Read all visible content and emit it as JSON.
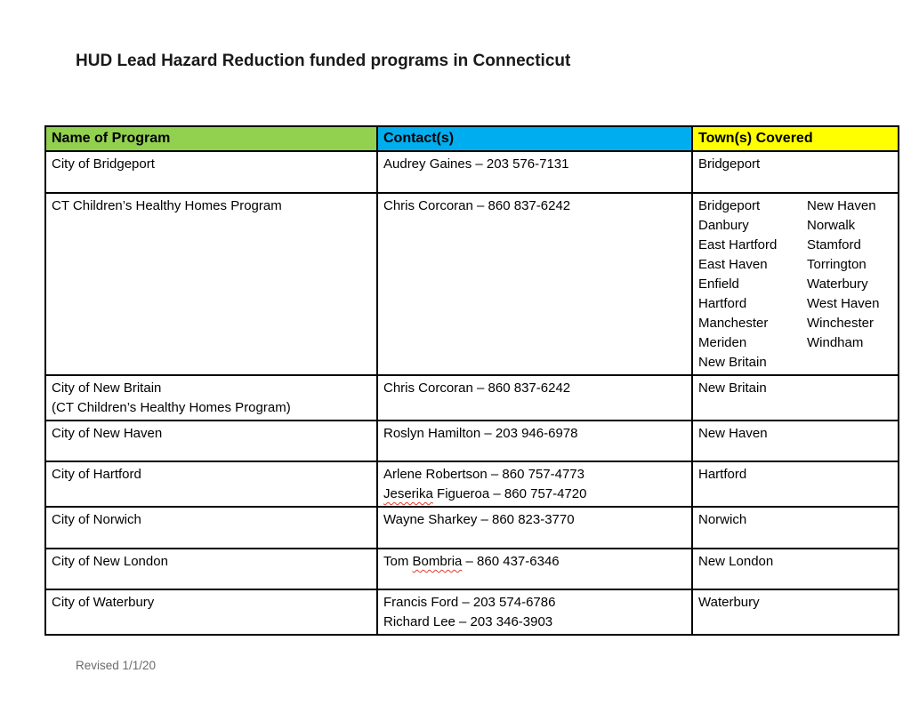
{
  "page": {
    "title": "HUD Lead Hazard Reduction funded programs in Connecticut",
    "footer": "Revised 1/1/20"
  },
  "table": {
    "headers": [
      {
        "label": "Name of Program",
        "color": "#92D050"
      },
      {
        "label": "Contact(s)",
        "color": "#00AEEF"
      },
      {
        "label": "Town(s) Covered",
        "color": "#FFFF00"
      }
    ],
    "spellcheck_color": "#e03c31",
    "rows": [
      {
        "program": [
          "City of Bridgeport"
        ],
        "contacts": [
          {
            "line": "Audrey Gaines – 203 576-7131"
          }
        ],
        "towns": [
          [
            "Bridgeport",
            ""
          ]
        ]
      },
      {
        "program": [
          "CT Children’s Healthy Homes Program"
        ],
        "contacts": [
          {
            "line": "Chris Corcoran – 860 837-6242"
          }
        ],
        "towns": [
          [
            "Bridgeport",
            "New Haven"
          ],
          [
            "Danbury",
            "Norwalk"
          ],
          [
            "East Hartford",
            "Stamford"
          ],
          [
            "East Haven",
            "Torrington"
          ],
          [
            "Enfield",
            "Waterbury"
          ],
          [
            "Hartford",
            "West Haven"
          ],
          [
            "Manchester",
            "Winchester"
          ],
          [
            "Meriden",
            "Windham"
          ],
          [
            "New Britain",
            ""
          ]
        ]
      },
      {
        "program": [
          "City of New Britain",
          "(CT Children’s Healthy Homes Program)"
        ],
        "contacts": [
          {
            "line": "Chris Corcoran – 860 837-6242"
          }
        ],
        "towns": [
          [
            "New Britain",
            ""
          ]
        ]
      },
      {
        "program": [
          "City of New Haven"
        ],
        "contacts": [
          {
            "line": "Roslyn Hamilton – 203 946-6978"
          }
        ],
        "towns": [
          [
            "New Haven",
            ""
          ]
        ]
      },
      {
        "program": [
          "City of Hartford"
        ],
        "contacts": [
          {
            "line": "Arlene Robertson – 860 757-4773"
          },
          {
            "line": "Jeserika Figueroa – 860 757-4720",
            "misspelled_word": "Jeserika"
          }
        ],
        "towns": [
          [
            "Hartford",
            ""
          ]
        ]
      },
      {
        "program": [
          "City of Norwich"
        ],
        "contacts": [
          {
            "line": "Wayne Sharkey – 860 823-3770"
          }
        ],
        "towns": [
          [
            "Norwich",
            ""
          ]
        ]
      },
      {
        "program": [
          "City of New London"
        ],
        "contacts": [
          {
            "line": "Tom Bombria – 860 437-6346",
            "misspelled_word": "Bombria"
          }
        ],
        "towns": [
          [
            "New London",
            ""
          ]
        ]
      },
      {
        "program": [
          "City of Waterbury"
        ],
        "contacts": [
          {
            "line": "Francis Ford – 203 574-6786"
          },
          {
            "line": "Richard Lee – 203 346-3903"
          }
        ],
        "towns": [
          [
            "Waterbury",
            ""
          ]
        ]
      }
    ]
  }
}
